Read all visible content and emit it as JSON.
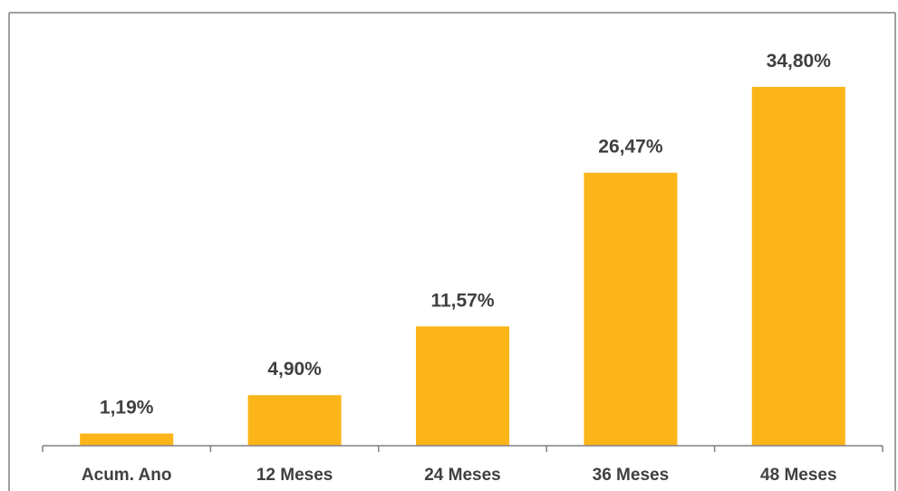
{
  "colors": {
    "bar": "#FBB519",
    "axis": "#808080",
    "text": "#404040",
    "border": "#808080"
  },
  "chart_data": {
    "type": "bar",
    "categories": [
      "Acum. Ano",
      "12 Meses",
      "24 Meses",
      "36 Meses",
      "48 Meses"
    ],
    "values": [
      1.19,
      4.9,
      11.57,
      26.47,
      34.8
    ],
    "data_labels": [
      "1,19%",
      "4,90%",
      "11,57%",
      "26,47%",
      "34,80%"
    ],
    "ylim": [
      0,
      42
    ],
    "grid": false,
    "legend": "none"
  }
}
